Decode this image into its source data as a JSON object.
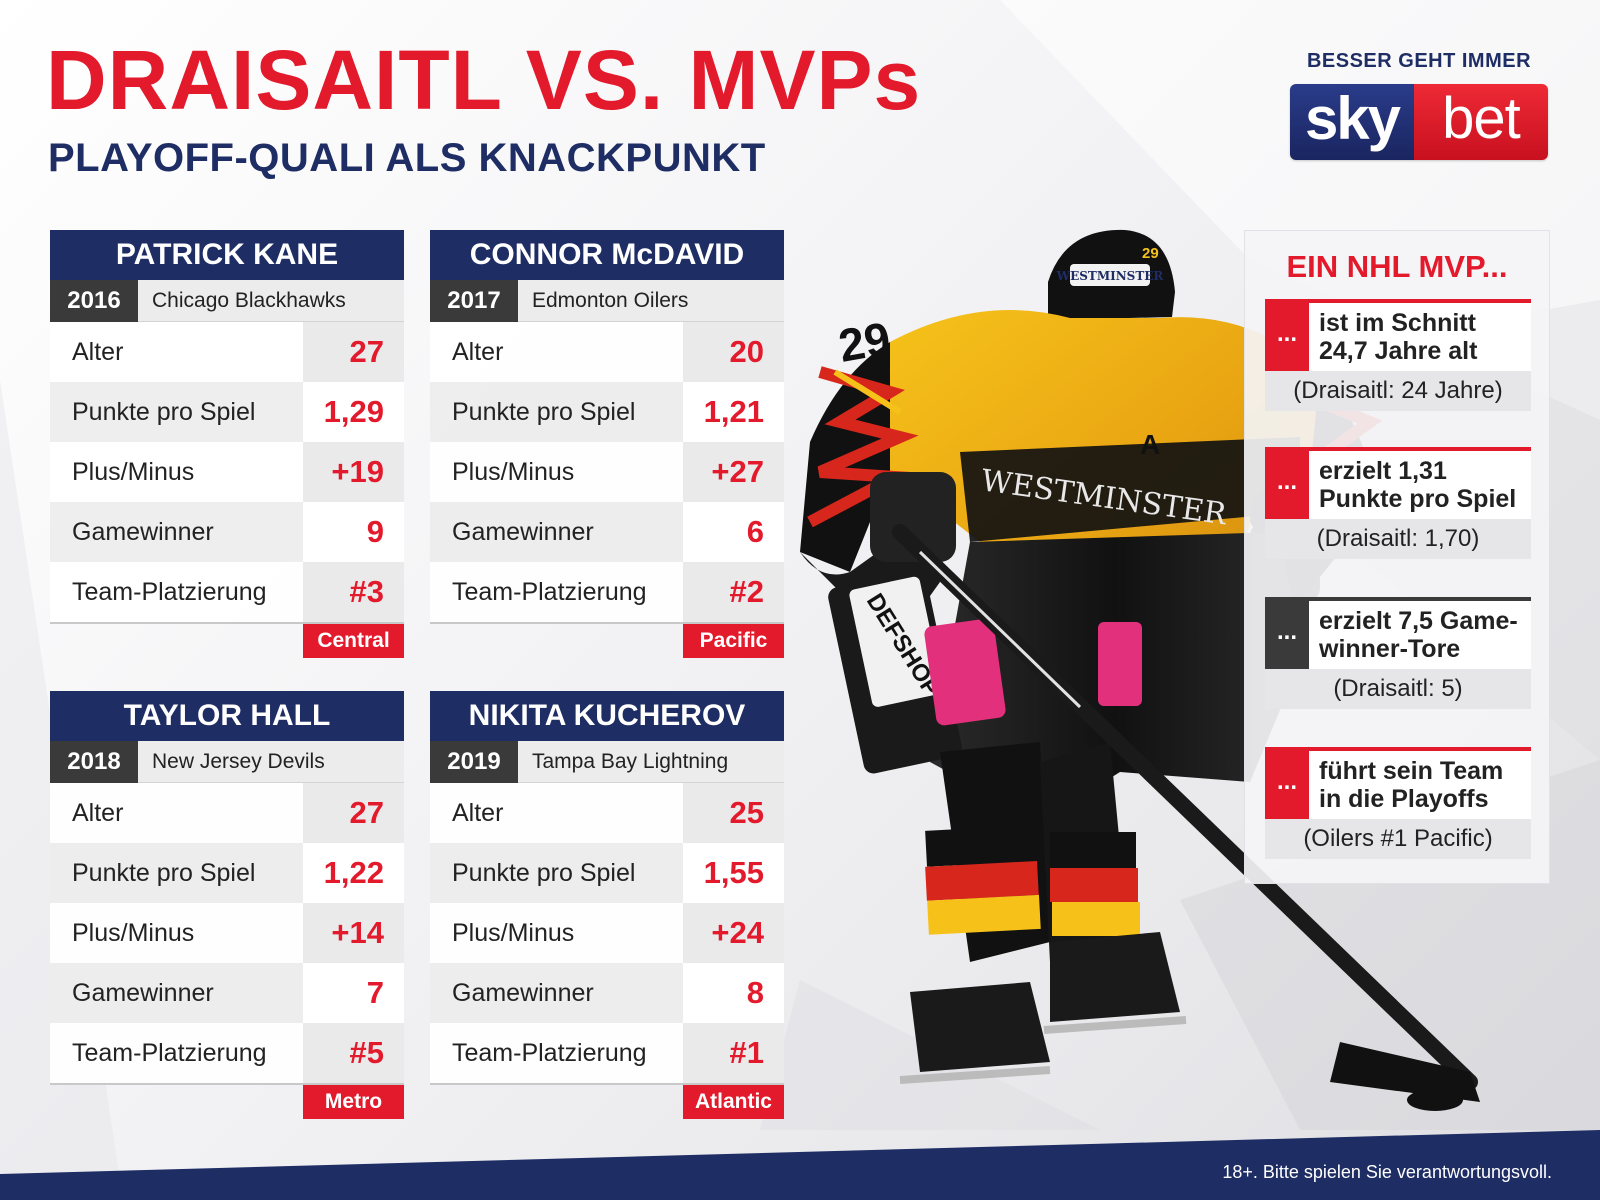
{
  "header": {
    "title": "DRAISAITL VS. MVPs",
    "subtitle": "PLAYOFF-QUALI ALS KNACKPUNKT"
  },
  "logo": {
    "tagline": "BESSER GEHT IMMER",
    "sky": "sky",
    "bet": "bet"
  },
  "colors": {
    "accent_red": "#e3192c",
    "navy": "#1e2d64",
    "dark_gray": "#3a3a3a"
  },
  "players": [
    {
      "name": "PATRICK KANE",
      "year": "2016",
      "team": "Chicago Blackhawks",
      "stats": [
        {
          "label": "Alter",
          "value": "27"
        },
        {
          "label": "Punkte pro Spiel",
          "value": "1,29"
        },
        {
          "label": "Plus/Minus",
          "value": "+19"
        },
        {
          "label": "Gamewinner",
          "value": "9"
        },
        {
          "label": "Team-Platzierung",
          "value": "#3"
        }
      ],
      "division": "Central"
    },
    {
      "name": "CONNOR McDAVID",
      "year": "2017",
      "team": "Edmonton Oilers",
      "stats": [
        {
          "label": "Alter",
          "value": "20"
        },
        {
          "label": "Punkte pro Spiel",
          "value": "1,21"
        },
        {
          "label": "Plus/Minus",
          "value": "+27"
        },
        {
          "label": "Gamewinner",
          "value": "6"
        },
        {
          "label": "Team-Platzierung",
          "value": "#2"
        }
      ],
      "division": "Pacific"
    },
    {
      "name": "TAYLOR HALL",
      "year": "2018",
      "team": "New Jersey Devils",
      "stats": [
        {
          "label": "Alter",
          "value": "27"
        },
        {
          "label": "Punkte pro Spiel",
          "value": "1,22"
        },
        {
          "label": "Plus/Minus",
          "value": "+14"
        },
        {
          "label": "Gamewinner",
          "value": "7"
        },
        {
          "label": "Team-Platzierung",
          "value": "#5"
        }
      ],
      "division": "Metro"
    },
    {
      "name": "NIKITA KUCHEROV",
      "year": "2019",
      "team": "Tampa Bay Lightning",
      "stats": [
        {
          "label": "Alter",
          "value": "25"
        },
        {
          "label": "Punkte pro Spiel",
          "value": "1,55"
        },
        {
          "label": "Plus/Minus",
          "value": "+24"
        },
        {
          "label": "Gamewinner",
          "value": "8"
        },
        {
          "label": "Team-Platzierung",
          "value": "#1"
        }
      ],
      "division": "Atlantic"
    }
  ],
  "mvp_panel": {
    "title": "EIN NHL MVP...",
    "items": [
      {
        "dots": "...",
        "line1": "ist im Schnitt",
        "line2": "24,7 Jahre alt",
        "sub": "(Draisaitl: 24 Jahre)",
        "style": "red"
      },
      {
        "dots": "...",
        "line1": "erzielt 1,31",
        "line2": "Punkte pro Spiel",
        "sub": "(Draisaitl: 1,70)",
        "style": "red"
      },
      {
        "dots": "...",
        "line1": "erzielt 7,5 Game-",
        "line2": "winner-Tore",
        "sub": "(Draisaitl: 5)",
        "style": "dark"
      },
      {
        "dots": "...",
        "line1": "führt sein Team",
        "line2": "in die Playoffs",
        "sub": "(Oilers #1 Pacific)",
        "style": "red"
      }
    ]
  },
  "jersey": {
    "number": "29",
    "captain_letter": "A",
    "sponsor": "WESTMINSTER",
    "pants_sponsor": "DEFSHOP"
  },
  "footer": {
    "note": "18+. Bitte spielen Sie verantwortungsvoll."
  }
}
